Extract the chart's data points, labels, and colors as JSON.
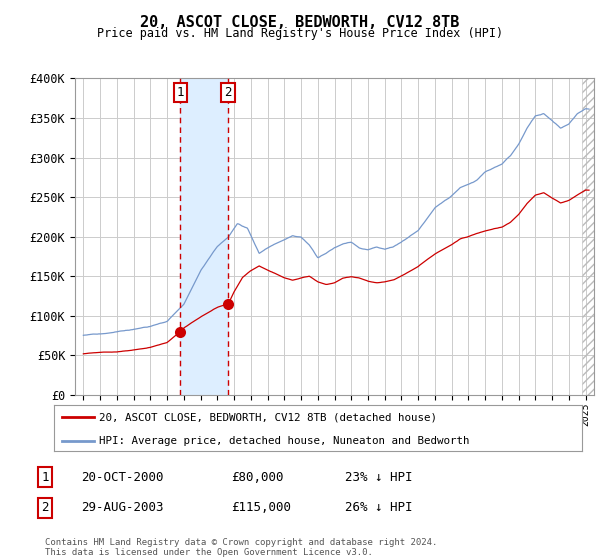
{
  "title": "20, ASCOT CLOSE, BEDWORTH, CV12 8TB",
  "subtitle": "Price paid vs. HM Land Registry's House Price Index (HPI)",
  "ylim": [
    0,
    400000
  ],
  "yticks": [
    0,
    50000,
    100000,
    150000,
    200000,
    250000,
    300000,
    350000,
    400000
  ],
  "ytick_labels": [
    "£0",
    "£50K",
    "£100K",
    "£150K",
    "£200K",
    "£250K",
    "£300K",
    "£350K",
    "£400K"
  ],
  "xlim_start": 1994.5,
  "xlim_end": 2025.5,
  "transaction1_x": 2000.8,
  "transaction1_y": 80000,
  "transaction1_label": "1",
  "transaction1_date": "20-OCT-2000",
  "transaction1_price": "£80,000",
  "transaction1_hpi": "23% ↓ HPI",
  "transaction2_x": 2003.66,
  "transaction2_y": 115000,
  "transaction2_label": "2",
  "transaction2_date": "29-AUG-2003",
  "transaction2_price": "£115,000",
  "transaction2_hpi": "26% ↓ HPI",
  "hpi_color": "#7799cc",
  "price_color": "#cc0000",
  "highlight_color": "#ddeeff",
  "grid_color": "#cccccc",
  "background_color": "#ffffff",
  "legend1": "20, ASCOT CLOSE, BEDWORTH, CV12 8TB (detached house)",
  "legend2": "HPI: Average price, detached house, Nuneaton and Bedworth",
  "footer": "Contains HM Land Registry data © Crown copyright and database right 2024.\nThis data is licensed under the Open Government Licence v3.0."
}
